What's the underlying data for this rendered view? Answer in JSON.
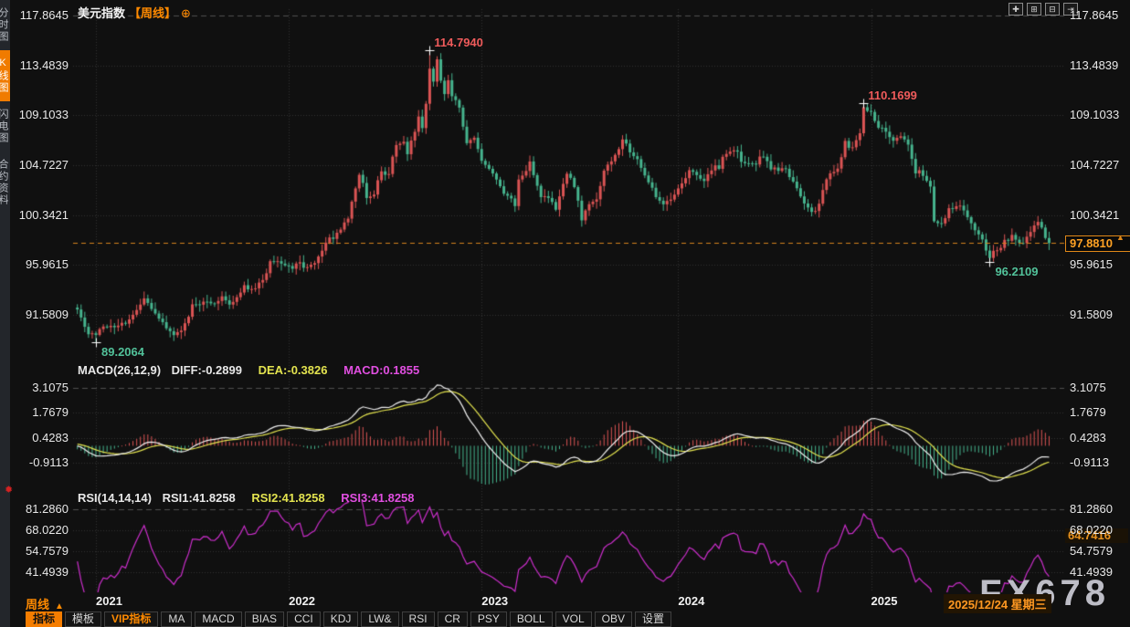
{
  "header": {
    "symbol": "美元指数",
    "period_tag": "【周线】",
    "add_icon": "⊕",
    "top_icons": [
      {
        "name": "pan-icon",
        "glyph": "✚"
      },
      {
        "name": "scale-left-icon",
        "glyph": "⊞"
      },
      {
        "name": "scale-right-icon",
        "glyph": "⊟"
      },
      {
        "name": "shift-right-icon",
        "glyph": "⇥"
      }
    ]
  },
  "sidebar": {
    "items": [
      {
        "label": "分时图",
        "active": false
      },
      {
        "label": "K线图",
        "active": true
      },
      {
        "label": "闪电图",
        "active": false
      },
      {
        "label": "合约资料",
        "active": false
      }
    ],
    "rec_icon": "✹"
  },
  "main_chart": {
    "y_axis_labels": [
      "117.8645",
      "113.4839",
      "109.1033",
      "104.7227",
      "100.3421",
      "95.9615",
      "91.5809"
    ],
    "price_box": "97.8810",
    "price_marker": "▲",
    "watermark": "FX678",
    "annotation_labels": [
      "114.7940",
      "110.1699",
      "96.2109",
      "89.2064"
    ]
  },
  "macd_panel": {
    "name_label": "MACD(26,12,9)",
    "diff_label": "DIFF:-0.2899",
    "dea_label": "DEA:-0.3826",
    "macd_label": "MACD:0.1855",
    "y_axis_labels": [
      "3.1075",
      "1.7679",
      "0.4283",
      "-0.9113"
    ]
  },
  "rsi_panel": {
    "name_label": "RSI(14,14,14)",
    "rsi1_label": "RSI1:41.8258",
    "rsi2_label": "RSI2:41.8258",
    "rsi3_label": "RSI3:41.8258",
    "y_axis_labels": [
      "81.2860",
      "68.0220",
      "54.7579",
      "41.4939"
    ],
    "value_box": "64.7416"
  },
  "x_axis": {
    "period": "周线",
    "dropdown_arrow": "▲",
    "years": [
      "2021",
      "2022",
      "2023",
      "2024",
      "2025"
    ],
    "date_box": "2025/12/24 星期三"
  },
  "toolbar": {
    "items": [
      {
        "label": "指标",
        "active": true
      },
      {
        "label": "模板"
      },
      {
        "label": "VIP指标",
        "vip": true
      },
      {
        "label": "MA"
      },
      {
        "label": "MACD"
      },
      {
        "label": "BIAS"
      },
      {
        "label": "CCI"
      },
      {
        "label": "KDJ"
      },
      {
        "label": "LW&"
      },
      {
        "label": "RSI"
      },
      {
        "label": "CR"
      },
      {
        "label": "PSY"
      },
      {
        "label": "BOLL"
      },
      {
        "label": "VOL"
      },
      {
        "label": "OBV"
      },
      {
        "label": "设置"
      }
    ]
  },
  "colors": {
    "up": "#db5454",
    "down": "#46b48e",
    "accent_orange": "#f07b00",
    "orange_text": "#ffa224",
    "dashed_price_line": "#d4831c",
    "diff_line": "#f0f0f0",
    "dea_line": "#e3e34f",
    "macd_value": "#e14fe1",
    "rsi_line": "#cc2ecc",
    "grid": "#303030",
    "separator": "#4f4f4f"
  },
  "chart_data": {
    "type": "candlestick",
    "symbol": "美元指数",
    "timeframe": "周线 (weekly)",
    "price_axis_ticks": [
      117.8645,
      113.4839,
      109.1033,
      104.7227,
      100.3421,
      95.9615,
      91.5809
    ],
    "macd_axis_ticks": [
      3.1075,
      1.7679,
      0.4283,
      -0.9113
    ],
    "rsi_axis_ticks": [
      81.286,
      68.022,
      54.7579,
      41.4939
    ],
    "x_year_ticks": [
      2021,
      2022,
      2023,
      2024,
      2025
    ],
    "last_price": 97.881,
    "last_date": "2025/12/24 星期三",
    "macd": {
      "fast": 12,
      "slow": 26,
      "signal": 9,
      "diff": -0.2899,
      "dea": -0.3826,
      "macd": 0.1855
    },
    "rsi": {
      "p1": 14,
      "p2": 14,
      "p3": 14,
      "rsi1": 41.8258,
      "rsi2": 41.8258,
      "rsi3": 41.8258,
      "right_value": 64.7416
    },
    "annotations": [
      {
        "week": 90,
        "price": 114.794,
        "kind": "high"
      },
      {
        "week": 207,
        "price": 110.1699,
        "kind": "high"
      },
      {
        "week": 241,
        "price": 96.2109,
        "kind": "low"
      },
      {
        "week": 0,
        "price": 89.2064,
        "kind": "low"
      }
    ],
    "weekly_close_anchors": [
      [
        -40,
        91.2
      ],
      [
        -30,
        92.5
      ],
      [
        -20,
        93.0
      ],
      [
        -10,
        92.0
      ],
      [
        -5,
        92.2
      ],
      [
        -4,
        91.4
      ],
      [
        -3,
        90.7
      ],
      [
        -2,
        90.1
      ],
      [
        -1,
        89.9
      ],
      [
        0,
        89.7
      ],
      [
        1,
        90.2
      ],
      [
        3,
        90.5
      ],
      [
        5,
        90.4
      ],
      [
        7,
        90.8
      ],
      [
        9,
        91.1
      ],
      [
        11,
        91.9
      ],
      [
        13,
        93.1
      ],
      [
        15,
        92.1
      ],
      [
        17,
        91.1
      ],
      [
        19,
        90.4
      ],
      [
        21,
        89.9
      ],
      [
        23,
        90.2
      ],
      [
        25,
        91.2
      ],
      [
        26,
        92.3
      ],
      [
        28,
        92.5
      ],
      [
        30,
        92.9
      ],
      [
        32,
        92.5
      ],
      [
        34,
        93.1
      ],
      [
        36,
        92.4
      ],
      [
        38,
        93.3
      ],
      [
        40,
        94.1
      ],
      [
        42,
        93.8
      ],
      [
        44,
        94.4
      ],
      [
        46,
        95.2
      ],
      [
        47,
        96.1
      ],
      [
        49,
        96.2
      ],
      [
        51,
        95.8
      ],
      [
        53,
        95.7
      ],
      [
        55,
        96.1
      ],
      [
        57,
        95.7
      ],
      [
        59,
        96.2
      ],
      [
        61,
        97.4
      ],
      [
        63,
        98.6
      ],
      [
        64,
        98.1
      ],
      [
        66,
        99.1
      ],
      [
        68,
        100.1
      ],
      [
        70,
        102.9
      ],
      [
        71,
        104.1
      ],
      [
        72,
        103.1
      ],
      [
        73,
        101.9
      ],
      [
        75,
        102.3
      ],
      [
        77,
        104.3
      ],
      [
        79,
        103.9
      ],
      [
        81,
        106.7
      ],
      [
        83,
        106.9
      ],
      [
        84,
        105.9
      ],
      [
        86,
        107.5
      ],
      [
        87,
        108.9
      ],
      [
        88,
        108.2
      ],
      [
        89,
        110.0
      ],
      [
        90,
        113.3
      ],
      [
        91,
        112.2
      ],
      [
        92,
        114.1
      ],
      [
        93,
        112.3
      ],
      [
        94,
        110.9
      ],
      [
        95,
        112.1
      ],
      [
        96,
        110.9
      ],
      [
        98,
        109.6
      ],
      [
        100,
        106.7
      ],
      [
        102,
        107.1
      ],
      [
        104,
        104.9
      ],
      [
        106,
        104.4
      ],
      [
        108,
        103.6
      ],
      [
        110,
        102.2
      ],
      [
        112,
        101.9
      ],
      [
        113,
        101.0
      ],
      [
        114,
        103.5
      ],
      [
        116,
        104.0
      ],
      [
        117,
        105.2
      ],
      [
        118,
        103.8
      ],
      [
        120,
        101.7
      ],
      [
        122,
        101.9
      ],
      [
        124,
        101.0
      ],
      [
        126,
        103.2
      ],
      [
        127,
        104.1
      ],
      [
        129,
        102.8
      ],
      [
        131,
        100.0
      ],
      [
        133,
        101.2
      ],
      [
        135,
        101.9
      ],
      [
        137,
        104.2
      ],
      [
        139,
        105.2
      ],
      [
        141,
        106.2
      ],
      [
        142,
        106.9
      ],
      [
        144,
        105.9
      ],
      [
        146,
        105.1
      ],
      [
        148,
        104.0
      ],
      [
        150,
        102.6
      ],
      [
        152,
        101.5
      ],
      [
        154,
        101.4
      ],
      [
        156,
        102.0
      ],
      [
        158,
        103.0
      ],
      [
        160,
        104.2
      ],
      [
        162,
        103.8
      ],
      [
        164,
        103.5
      ],
      [
        166,
        104.4
      ],
      [
        168,
        104.6
      ],
      [
        170,
        105.9
      ],
      [
        172,
        106.2
      ],
      [
        174,
        105.2
      ],
      [
        176,
        104.7
      ],
      [
        178,
        105.0
      ],
      [
        180,
        105.6
      ],
      [
        182,
        104.5
      ],
      [
        184,
        104.1
      ],
      [
        186,
        104.4
      ],
      [
        188,
        103.3
      ],
      [
        190,
        101.8
      ],
      [
        192,
        100.8
      ],
      [
        194,
        100.5
      ],
      [
        196,
        102.6
      ],
      [
        198,
        104.0
      ],
      [
        200,
        104.4
      ],
      [
        202,
        106.8
      ],
      [
        204,
        106.1
      ],
      [
        206,
        107.6
      ],
      [
        207,
        109.9
      ],
      [
        209,
        109.2
      ],
      [
        211,
        108.0
      ],
      [
        213,
        107.7
      ],
      [
        215,
        106.9
      ],
      [
        217,
        107.4
      ],
      [
        219,
        106.7
      ],
      [
        221,
        104.2
      ],
      [
        223,
        104.0
      ],
      [
        225,
        102.9
      ],
      [
        226,
        99.7
      ],
      [
        228,
        99.5
      ],
      [
        230,
        101.0
      ],
      [
        232,
        101.2
      ],
      [
        234,
        100.8
      ],
      [
        236,
        99.4
      ],
      [
        238,
        98.8
      ],
      [
        240,
        97.4
      ],
      [
        241,
        96.7
      ],
      [
        243,
        97.3
      ],
      [
        245,
        98.0
      ],
      [
        247,
        98.5
      ],
      [
        249,
        97.8
      ],
      [
        251,
        98.4
      ],
      [
        253,
        99.3
      ],
      [
        254,
        99.9
      ],
      [
        255,
        99.4
      ],
      [
        256,
        98.3
      ],
      [
        257,
        97.881
      ]
    ],
    "forced_extremes": [
      {
        "week": 90,
        "high": 114.794
      },
      {
        "week": 207,
        "high": 110.1699
      },
      {
        "week": 241,
        "low": 96.2109
      },
      {
        "week": 0,
        "low": 89.2064
      }
    ]
  }
}
